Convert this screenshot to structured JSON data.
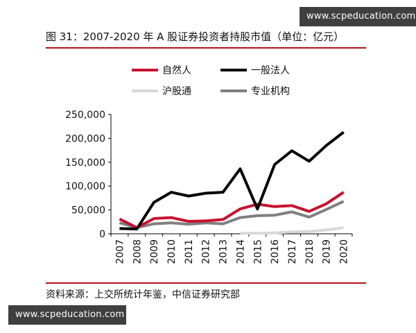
{
  "watermark": {
    "text": "www.scpeducation.com"
  },
  "figure": {
    "title": "图 31：2007-2020 年 A 股证券投资者持股市值（单位：亿元）",
    "source": "资料来源：上交所统计年鉴，中信证券研究部"
  },
  "chart_data": {
    "type": "line",
    "x": [
      "2007",
      "2008",
      "2009",
      "2010",
      "2011",
      "2012",
      "2013",
      "2014",
      "2015",
      "2016",
      "2017",
      "2018",
      "2019",
      "2020"
    ],
    "ylim": [
      0,
      250000
    ],
    "yticks": [
      0,
      50000,
      100000,
      150000,
      200000,
      250000
    ],
    "ytick_labels": [
      "0",
      "50,000",
      "100,000",
      "150,000",
      "200,000",
      "250,000"
    ],
    "grid": false,
    "legend_position": "top",
    "series": [
      {
        "name": "自然人",
        "color": "#c8102e",
        "values": [
          31000,
          13000,
          32000,
          34000,
          26000,
          27000,
          30000,
          52000,
          62000,
          57000,
          59000,
          47000,
          63000,
          87000
        ]
      },
      {
        "name": "一般法人",
        "color": "#000000",
        "values": [
          11000,
          10000,
          66000,
          87000,
          79000,
          85000,
          87000,
          136000,
          52000,
          145000,
          174000,
          152000,
          185000,
          213000
        ]
      },
      {
        "name": "沪股通",
        "color": "#d9d9d9",
        "values": [
          null,
          null,
          null,
          null,
          null,
          null,
          null,
          1000,
          1000,
          2000,
          4000,
          5000,
          8000,
          13000
        ]
      },
      {
        "name": "专业机构",
        "color": "#7f7f7f",
        "values": [
          23000,
          13000,
          21000,
          23000,
          20000,
          23000,
          21000,
          34000,
          38000,
          39000,
          46000,
          35000,
          51000,
          68000
        ]
      }
    ]
  }
}
